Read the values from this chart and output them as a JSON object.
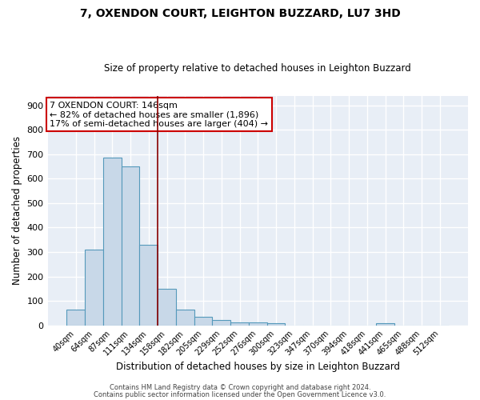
{
  "title": "7, OXENDON COURT, LEIGHTON BUZZARD, LU7 3HD",
  "subtitle": "Size of property relative to detached houses in Leighton Buzzard",
  "xlabel": "Distribution of detached houses by size in Leighton Buzzard",
  "ylabel": "Number of detached properties",
  "bar_color": "#c8d8e8",
  "bar_edge_color": "#5599bb",
  "background_color": "#e8eef6",
  "grid_color": "#ffffff",
  "categories": [
    "40sqm",
    "64sqm",
    "87sqm",
    "111sqm",
    "134sqm",
    "158sqm",
    "182sqm",
    "205sqm",
    "229sqm",
    "252sqm",
    "276sqm",
    "300sqm",
    "323sqm",
    "347sqm",
    "370sqm",
    "394sqm",
    "418sqm",
    "441sqm",
    "465sqm",
    "488sqm",
    "512sqm"
  ],
  "values": [
    65,
    310,
    685,
    650,
    330,
    150,
    65,
    35,
    20,
    12,
    12,
    8,
    0,
    0,
    0,
    0,
    0,
    10,
    0,
    0,
    0
  ],
  "vline_color": "#880000",
  "annotation_text": "7 OXENDON COURT: 146sqm\n← 82% of detached houses are smaller (1,896)\n17% of semi-detached houses are larger (404) →",
  "annotation_box_color": "#ffffff",
  "annotation_border_color": "#cc0000",
  "ylim": [
    0,
    940
  ],
  "yticks": [
    0,
    100,
    200,
    300,
    400,
    500,
    600,
    700,
    800,
    900
  ],
  "footer1": "Contains HM Land Registry data © Crown copyright and database right 2024.",
  "footer2": "Contains public sector information licensed under the Open Government Licence v3.0."
}
